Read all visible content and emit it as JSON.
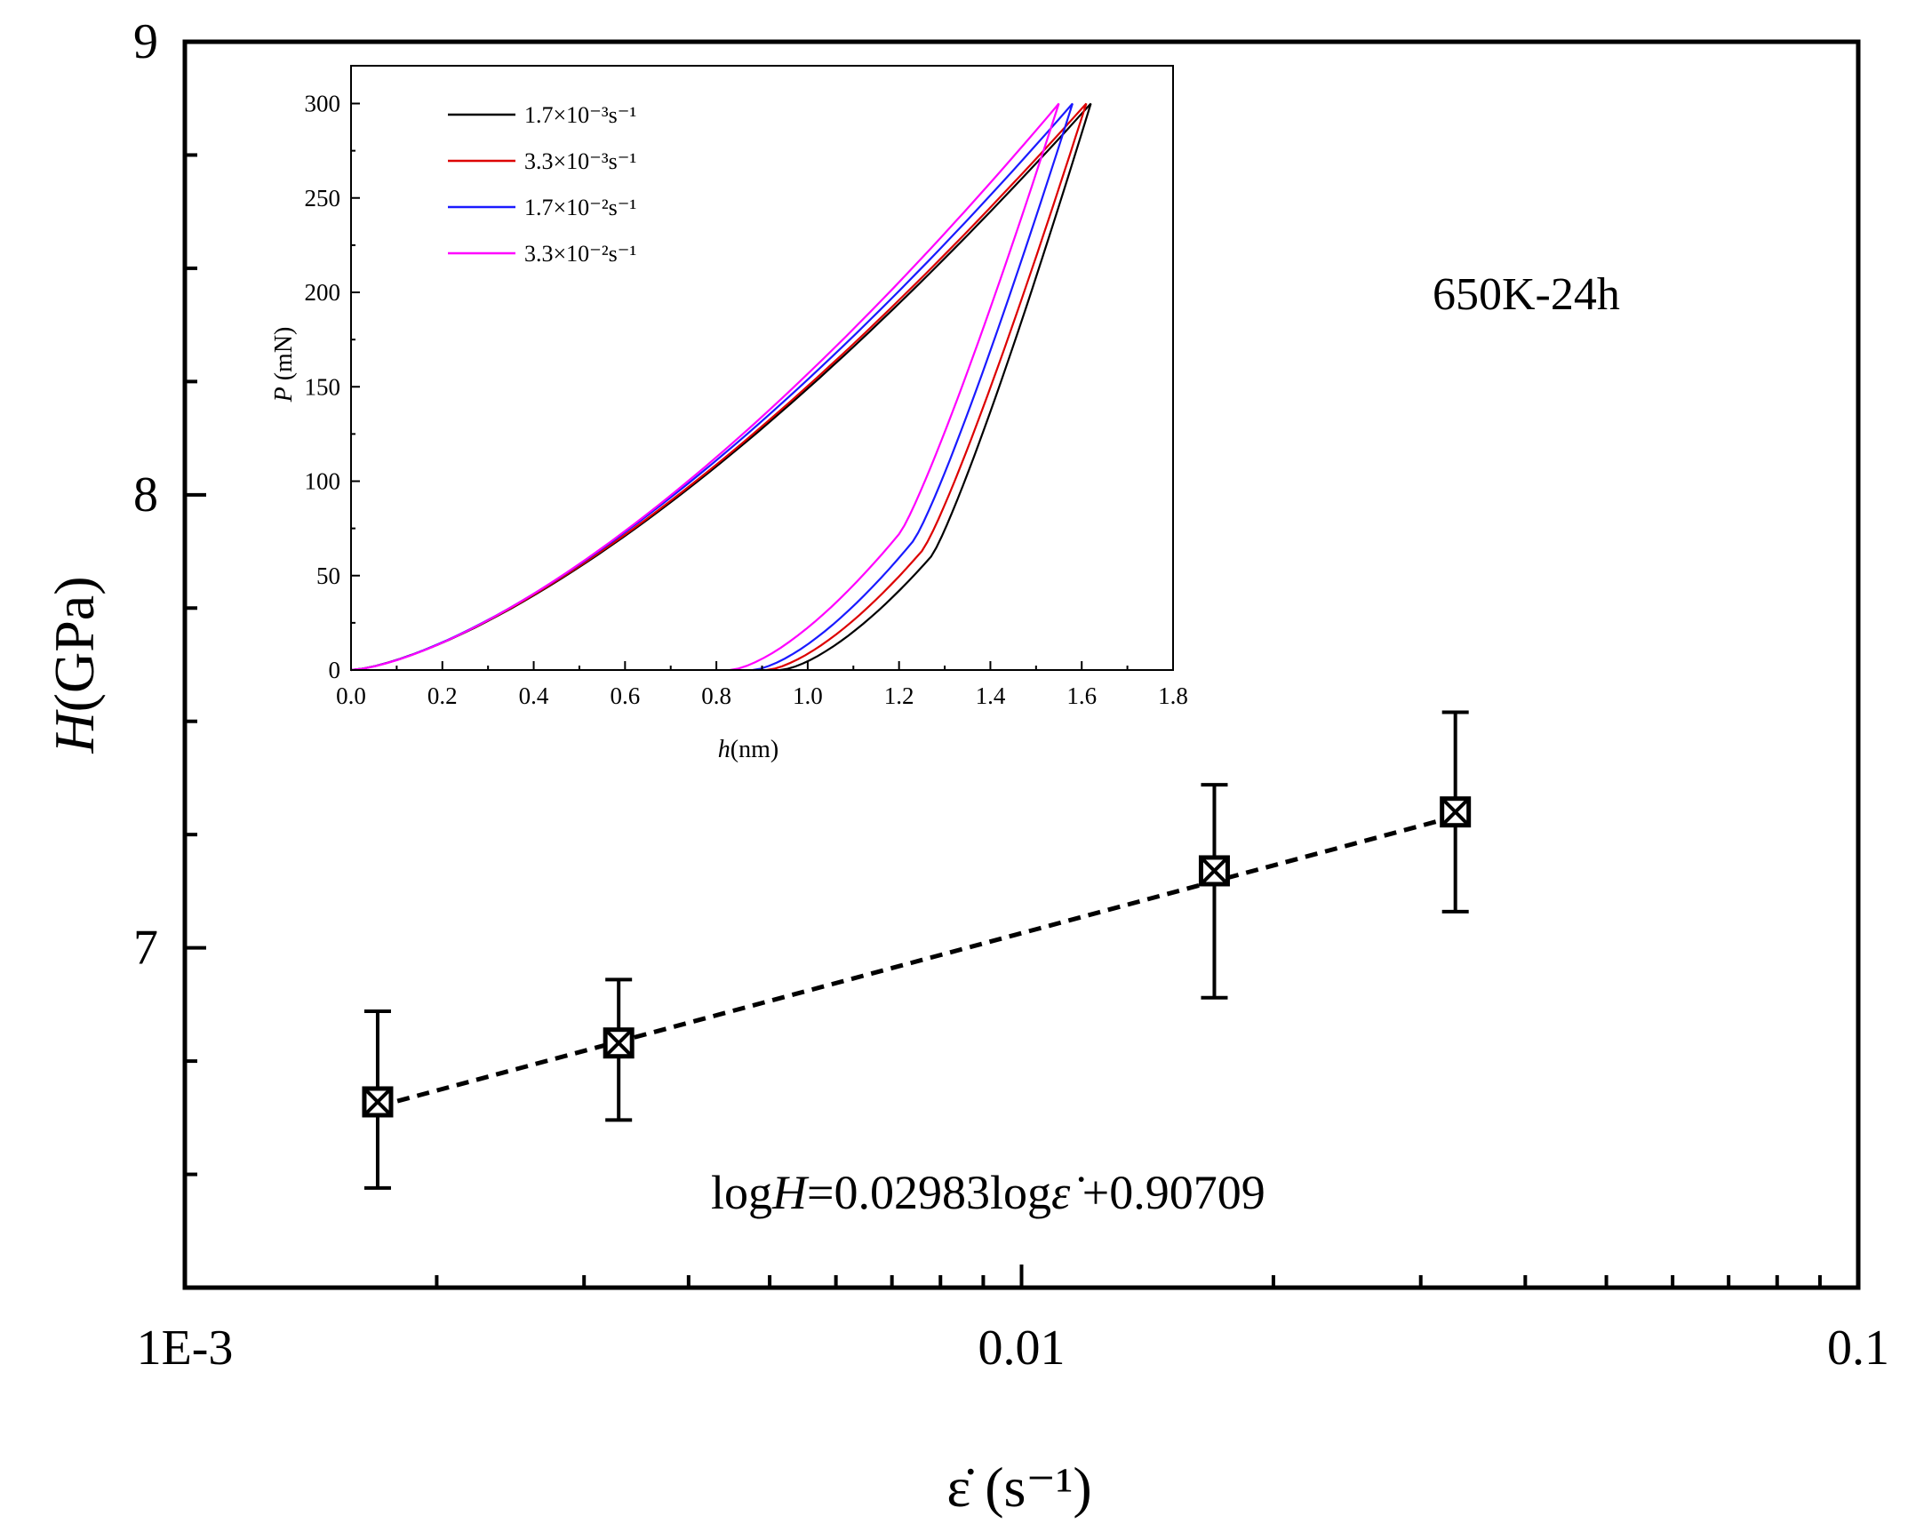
{
  "chart_data": [
    {
      "type": "scatter",
      "title": "",
      "xlabel": "ε̇ (s⁻¹)",
      "xscale": "log",
      "xlim": [
        0.001,
        0.1
      ],
      "ylim": [
        6.25,
        9
      ],
      "x_tick_labels": [
        {
          "value": 0.001,
          "label": "1E-3"
        },
        {
          "value": 0.01,
          "label": "0.01"
        },
        {
          "value": 0.1,
          "label": "0.1"
        }
      ],
      "y_tick_labels": [
        {
          "value": 7,
          "label": "7"
        },
        {
          "value": 8,
          "label": "8"
        },
        {
          "value": 9,
          "label": "9"
        }
      ],
      "ylabel_italic": "H",
      "ylabel_unit": "(GPa)",
      "annotation": "650K-24h",
      "equation": {
        "pre": "log",
        "italic": "H",
        "mid": "=0.02983log",
        "sym": "ε̇",
        "post": " +0.90709"
      },
      "series": [
        {
          "name": "H",
          "marker": "square-x",
          "x": [
            0.0017,
            0.0033,
            0.017,
            0.033
          ],
          "y": [
            6.66,
            6.79,
            7.17,
            7.3
          ],
          "err_low": [
            6.47,
            6.62,
            6.89,
            7.08
          ],
          "err_high": [
            6.86,
            6.93,
            7.36,
            7.52
          ]
        }
      ],
      "fit": {
        "style": "dashed",
        "x": [
          0.0017,
          0.033
        ],
        "y": [
          6.65,
          7.29
        ]
      }
    },
    {
      "type": "line",
      "title": "",
      "xlabel_italic": "h",
      "xlabel_unit": "(nm)",
      "ylabel_italic": "P",
      "ylabel_unit": " (mN)",
      "xlim": [
        0,
        1.8
      ],
      "ylim": [
        0,
        320
      ],
      "xticks": [
        "0.0",
        "0.2",
        "0.4",
        "0.6",
        "0.8",
        "1.0",
        "1.2",
        "1.4",
        "1.6",
        "1.8"
      ],
      "yticks": [
        "0",
        "50",
        "100",
        "150",
        "200",
        "250",
        "300"
      ],
      "legend_position": "top-left",
      "series": [
        {
          "name": "1.7×10⁻³s⁻¹",
          "color": "#000000",
          "hmax": 1.62,
          "hf": 0.94,
          "hk": 1.27,
          "pk": 60,
          "exp": 1.45
        },
        {
          "name": "3.3×10⁻³s⁻¹",
          "color": "#dd0000",
          "hmax": 1.61,
          "hf": 0.91,
          "hk": 1.25,
          "pk": 63,
          "exp": 1.45
        },
        {
          "name": "1.7×10⁻²s⁻¹",
          "color": "#1a1aff",
          "hmax": 1.58,
          "hf": 0.88,
          "hk": 1.23,
          "pk": 68,
          "exp": 1.46
        },
        {
          "name": "3.3×10⁻²s⁻¹",
          "color": "#ff00ff",
          "hmax": 1.55,
          "hf": 0.83,
          "hk": 1.2,
          "pk": 72,
          "exp": 1.48
        }
      ]
    }
  ]
}
